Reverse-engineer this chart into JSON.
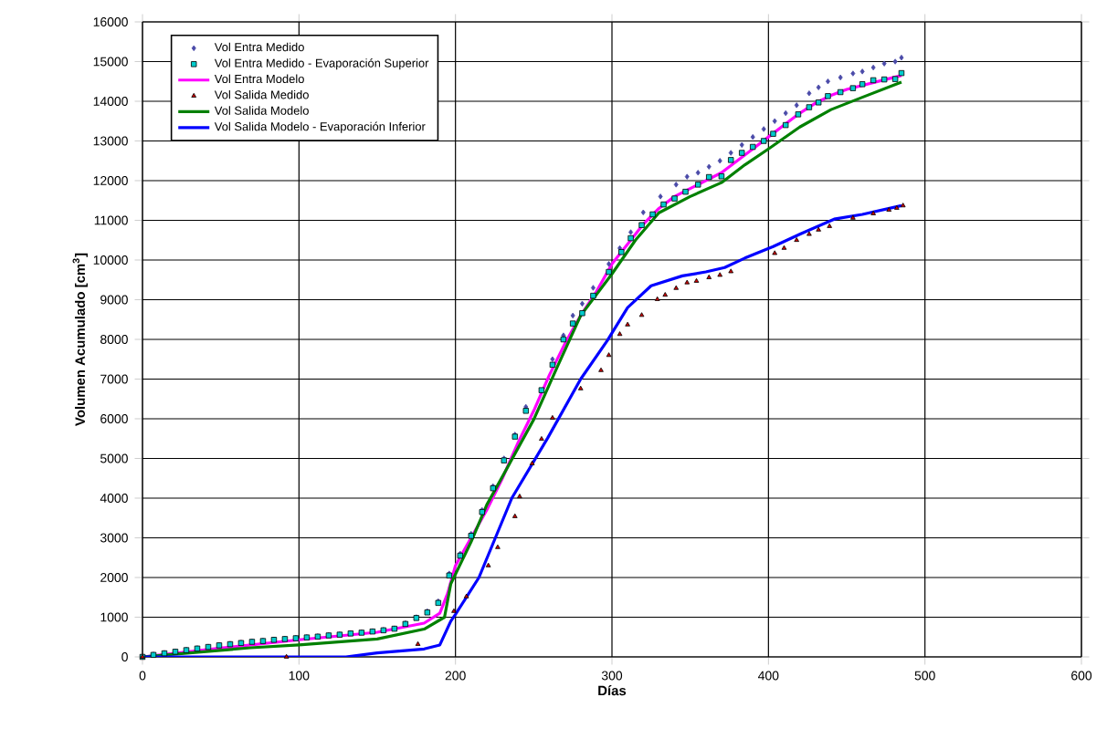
{
  "chart_data": {
    "type": "scatter",
    "xlabel": "Días",
    "ylabel": "Volumen Acumulado [cm$^{3}$]",
    "xlim": [
      0,
      600
    ],
    "ylim": [
      0,
      16000
    ],
    "xticks": [
      0,
      100,
      200,
      300,
      400,
      500,
      600
    ],
    "yticks": [
      0,
      1000,
      2000,
      3000,
      4000,
      5000,
      6000,
      7000,
      8000,
      9000,
      10000,
      11000,
      12000,
      13000,
      14000,
      15000,
      16000
    ],
    "grid": true,
    "legend": "top left",
    "series": [
      {
        "name": "Vol Entra Medido",
        "marker": "diamond",
        "color": "#4a4aa8",
        "x": [
          0,
          7,
          14,
          21,
          28,
          35,
          42,
          49,
          56,
          63,
          70,
          77,
          84,
          91,
          98,
          105,
          112,
          119,
          126,
          133,
          140,
          147,
          154,
          161,
          168,
          175,
          182,
          189,
          196,
          203,
          210,
          217,
          224,
          231,
          238,
          245,
          255,
          262,
          269,
          275,
          281,
          288,
          298,
          305,
          312,
          320,
          331,
          341,
          348,
          355,
          362,
          369,
          376,
          383,
          390,
          397,
          404,
          411,
          418,
          426,
          432,
          438,
          446,
          454,
          460,
          467,
          474,
          481,
          485
        ],
        "values": [
          0,
          60,
          100,
          140,
          180,
          220,
          260,
          300,
          330,
          360,
          390,
          410,
          440,
          460,
          480,
          500,
          520,
          550,
          570,
          600,
          620,
          650,
          680,
          720,
          850,
          1000,
          1150,
          1400,
          2100,
          2600,
          3100,
          3700,
          4300,
          5000,
          5600,
          6300,
          6700,
          7500,
          8100,
          8600,
          8900,
          9300,
          9900,
          10300,
          10700,
          11200,
          11600,
          11900,
          12100,
          12200,
          12350,
          12500,
          12700,
          12900,
          13100,
          13300,
          13500,
          13700,
          13900,
          14200,
          14350,
          14500,
          14600,
          14700,
          14750,
          14850,
          14950,
          15000,
          15100
        ]
      },
      {
        "name": "Vol Entra Medido - Evaporación Superior",
        "marker": "square",
        "color": "#00cccc",
        "x": [
          0,
          7,
          14,
          21,
          28,
          35,
          42,
          49,
          56,
          63,
          70,
          77,
          84,
          91,
          98,
          105,
          112,
          119,
          126,
          133,
          140,
          147,
          154,
          161,
          168,
          175,
          182,
          189,
          196,
          203,
          210,
          217,
          224,
          231,
          238,
          245,
          255,
          262,
          269,
          275,
          281,
          288,
          298,
          306,
          312,
          319,
          326,
          333,
          340,
          347,
          355,
          362,
          370,
          376,
          383,
          390,
          397,
          403,
          411,
          419,
          426,
          432,
          438,
          446,
          454,
          460,
          467,
          474,
          481,
          485
        ],
        "values": [
          0,
          50,
          90,
          130,
          170,
          210,
          250,
          290,
          320,
          350,
          380,
          400,
          430,
          450,
          470,
          490,
          510,
          540,
          560,
          590,
          610,
          640,
          670,
          710,
          830,
          980,
          1120,
          1360,
          2050,
          2550,
          3050,
          3650,
          4250,
          4950,
          5550,
          6200,
          6720,
          7360,
          8000,
          8400,
          8660,
          9100,
          9700,
          10200,
          10550,
          10880,
          11150,
          11400,
          11550,
          11720,
          11900,
          12090,
          12110,
          12520,
          12700,
          12850,
          13000,
          13180,
          13400,
          13670,
          13850,
          13970,
          14130,
          14230,
          14330,
          14430,
          14530,
          14550,
          14560,
          14710
        ]
      },
      {
        "name": "Vol Entra Modelo",
        "type": "line",
        "color": "#ff00ff",
        "x": [
          0,
          50,
          100,
          150,
          180,
          190,
          195,
          200,
          210,
          220,
          230,
          240,
          250,
          260,
          270,
          280,
          290,
          300,
          310,
          320,
          330,
          340,
          350,
          360,
          370,
          380,
          390,
          400,
          410,
          420,
          430,
          440,
          450,
          460,
          470,
          480,
          485
        ],
        "values": [
          0,
          220,
          430,
          620,
          850,
          1100,
          1600,
          2300,
          3000,
          3700,
          4500,
          5400,
          6200,
          7100,
          7900,
          8600,
          9200,
          9900,
          10400,
          10900,
          11300,
          11600,
          11800,
          12000,
          12200,
          12500,
          12800,
          13100,
          13400,
          13700,
          13950,
          14150,
          14300,
          14400,
          14500,
          14600,
          14650
        ]
      },
      {
        "name": "Vol Salida Medido",
        "marker": "triangle",
        "color": "#cc0000",
        "x": [
          0,
          92,
          176,
          199,
          207,
          221,
          227,
          238,
          241,
          249,
          255,
          262,
          280,
          293,
          298,
          305,
          310,
          319,
          329,
          334,
          341,
          348,
          354,
          362,
          369,
          376,
          404,
          410,
          418,
          426,
          432,
          439,
          454,
          467,
          477,
          482,
          486
        ],
        "values": [
          0,
          0,
          320,
          1150,
          1520,
          2300,
          2760,
          3540,
          4040,
          4870,
          5490,
          6020,
          6760,
          7220,
          7600,
          8130,
          8370,
          8610,
          9010,
          9120,
          9290,
          9430,
          9470,
          9560,
          9620,
          9710,
          10170,
          10300,
          10500,
          10650,
          10760,
          10850,
          11060,
          11170,
          11260,
          11310,
          11370
        ]
      },
      {
        "name": "Vol Salida Modelo",
        "type": "line",
        "color": "#008000",
        "x": [
          0,
          69,
          100,
          150,
          180,
          193,
          197,
          210,
          220,
          235,
          250,
          265,
          280,
          300,
          315,
          330,
          350,
          370,
          385,
          400,
          420,
          440,
          460,
          485
        ],
        "values": [
          0,
          230,
          300,
          450,
          700,
          1000,
          1840,
          2900,
          3830,
          4900,
          5980,
          7300,
          8600,
          9650,
          10500,
          11190,
          11600,
          11950,
          12400,
          12800,
          13350,
          13790,
          14100,
          14480
        ]
      },
      {
        "name": "Vol Salida Modelo - Evaporación Inferior",
        "type": "line",
        "color": "#0000ff",
        "x": [
          0,
          130,
          150,
          180,
          190,
          197,
          200,
          215,
          236,
          259,
          280,
          297,
          310,
          325,
          345,
          360,
          372,
          385,
          403,
          420,
          442,
          460,
          485
        ],
        "values": [
          0,
          0,
          100,
          200,
          300,
          900,
          1070,
          2000,
          4000,
          5520,
          7000,
          7970,
          8800,
          9350,
          9600,
          9700,
          9810,
          10050,
          10340,
          10650,
          11030,
          11150,
          11370
        ]
      }
    ]
  }
}
